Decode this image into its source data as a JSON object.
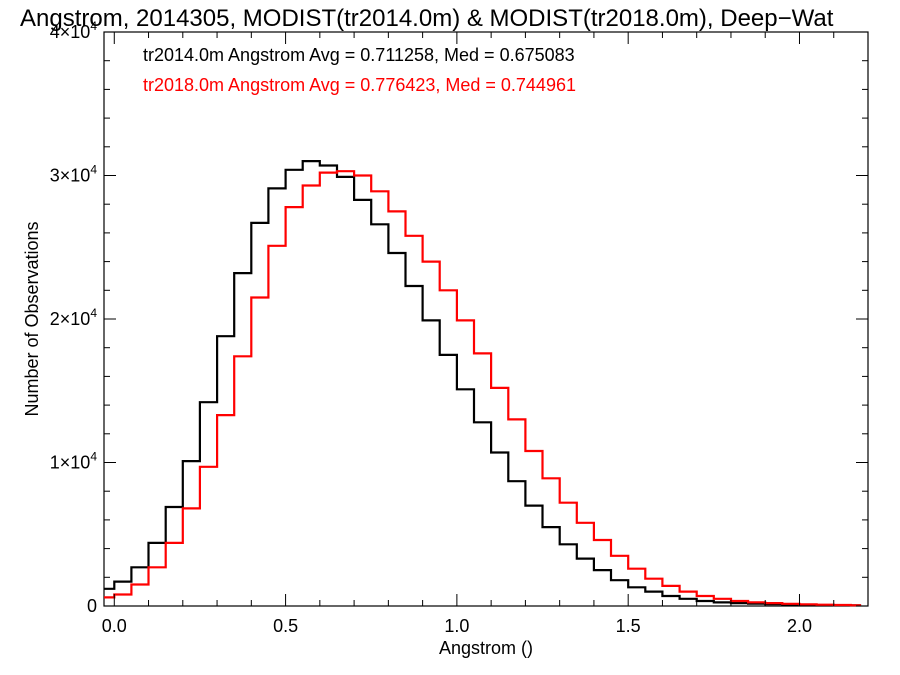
{
  "chart_data": {
    "type": "line",
    "title": "Angstrom, 2014305, MODIST(tr2014.0m) & MODIST(tr2018.0m), Deep−Wat",
    "xlabel": "Angstrom ()",
    "ylabel": "Number of Observations",
    "xlim": [
      -0.03,
      2.2
    ],
    "ylim": [
      0,
      40000
    ],
    "grid": false,
    "legend": "none",
    "x_ticks": [
      {
        "value": 0.0,
        "label": "0.0"
      },
      {
        "value": 0.5,
        "label": "0.5"
      },
      {
        "value": 1.0,
        "label": "1.0"
      },
      {
        "value": 1.5,
        "label": "1.5"
      },
      {
        "value": 2.0,
        "label": "2.0"
      }
    ],
    "y_ticks": [
      {
        "value": 0,
        "base": "0",
        "exp": ""
      },
      {
        "value": 10000,
        "base": "1×10",
        "exp": "4"
      },
      {
        "value": 20000,
        "base": "2×10",
        "exp": "4"
      },
      {
        "value": 30000,
        "base": "3×10",
        "exp": "4"
      },
      {
        "value": 40000,
        "base": "4×10",
        "exp": "4"
      }
    ],
    "annotations": [
      {
        "text": "tr2014.0m Angstrom Avg = 0.711258, Med = 0.675083",
        "color": "#000000"
      },
      {
        "text": "tr2018.0m Angstrom Avg = 0.776423, Med = 0.744961",
        "color": "#ff0000"
      }
    ],
    "series": [
      {
        "color": "#000000",
        "x": [
          -0.03,
          0.0,
          0.05,
          0.1,
          0.15,
          0.2,
          0.25,
          0.3,
          0.35,
          0.4,
          0.45,
          0.5,
          0.55,
          0.6,
          0.65,
          0.7,
          0.75,
          0.8,
          0.85,
          0.9,
          0.95,
          1.0,
          1.05,
          1.1,
          1.15,
          1.2,
          1.25,
          1.3,
          1.35,
          1.4,
          1.45,
          1.5,
          1.55,
          1.6,
          1.65,
          1.7,
          1.75,
          1.8,
          1.85,
          1.9,
          1.95,
          2.0,
          2.05,
          2.1,
          2.15
        ],
        "y": [
          1200,
          1700,
          2700,
          4400,
          6900,
          10100,
          14200,
          18800,
          23200,
          26700,
          29100,
          30400,
          31000,
          30700,
          29900,
          28300,
          26600,
          24600,
          22300,
          19900,
          17500,
          15100,
          12800,
          10700,
          8700,
          7000,
          5500,
          4300,
          3300,
          2500,
          1800,
          1300,
          1000,
          700,
          500,
          350,
          250,
          200,
          160,
          130,
          100,
          80,
          60,
          50,
          40
        ]
      },
      {
        "color": "#ff0000",
        "x": [
          -0.03,
          0.0,
          0.05,
          0.1,
          0.15,
          0.2,
          0.25,
          0.3,
          0.35,
          0.4,
          0.45,
          0.5,
          0.55,
          0.6,
          0.65,
          0.7,
          0.75,
          0.8,
          0.85,
          0.9,
          0.95,
          1.0,
          1.05,
          1.1,
          1.15,
          1.2,
          1.25,
          1.3,
          1.35,
          1.4,
          1.45,
          1.5,
          1.55,
          1.6,
          1.65,
          1.7,
          1.75,
          1.8,
          1.85,
          1.9,
          1.95,
          2.0,
          2.05,
          2.1,
          2.15
        ],
        "y": [
          600,
          800,
          1500,
          2700,
          4400,
          6800,
          9700,
          13300,
          17400,
          21500,
          25100,
          27800,
          29300,
          30200,
          30300,
          30000,
          28900,
          27500,
          25800,
          24000,
          22000,
          19900,
          17600,
          15200,
          13000,
          10800,
          8900,
          7200,
          5800,
          4600,
          3500,
          2600,
          1900,
          1400,
          1000,
          700,
          500,
          350,
          260,
          200,
          150,
          120,
          90,
          70,
          50
        ]
      }
    ]
  }
}
